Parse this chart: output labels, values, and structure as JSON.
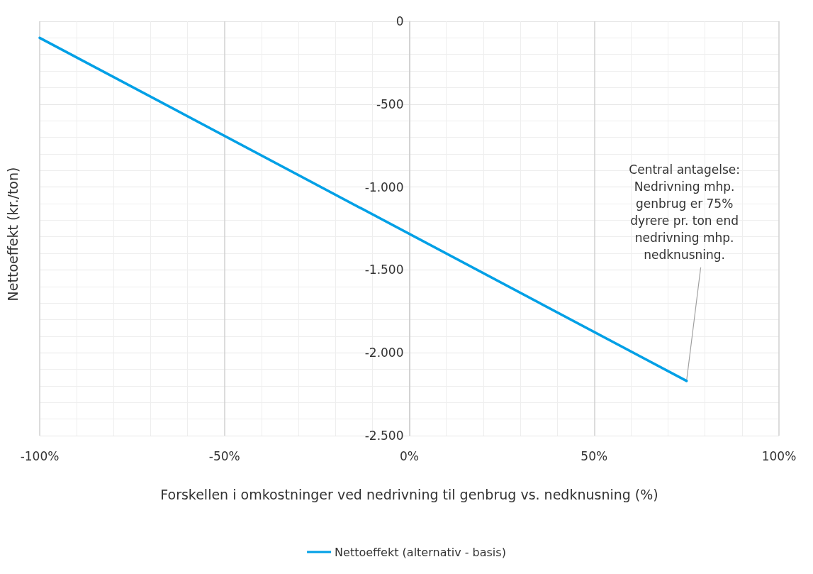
{
  "chart_data": {
    "type": "line",
    "xlabel": "Forskellen i omkostninger ved nedrivning til genbrug vs. nedknusning (%)",
    "ylabel": "Nettoeffekt (kr./ton)",
    "x": [
      -100,
      75
    ],
    "series": [
      {
        "name": "Nettoeffekt (alternativ - basis)",
        "color": "#00a0e6",
        "values": [
          -100,
          -2170
        ]
      }
    ],
    "xlim": [
      -100,
      100
    ],
    "xticks": [
      {
        "value": -100,
        "label": "-100%"
      },
      {
        "value": -50,
        "label": "-50%"
      },
      {
        "value": 0,
        "label": "0%"
      },
      {
        "value": 50,
        "label": "50%"
      },
      {
        "value": 100,
        "label": "100%"
      }
    ],
    "ylim": [
      -2500,
      0
    ],
    "yticks": [
      {
        "value": -2500,
        "label": "-2.500"
      },
      {
        "value": -2000,
        "label": "-2.000"
      },
      {
        "value": -1500,
        "label": "-1.500"
      },
      {
        "value": -1000,
        "label": "-1.000"
      },
      {
        "value": -500,
        "label": "-500"
      },
      {
        "value": 0,
        "label": "0"
      }
    ],
    "grid": true,
    "legend": "bottom",
    "marker": "none",
    "line_style": "solid",
    "annotations": [
      {
        "text": "Central antagelse:\nNedrivning mhp.\ngenbrug er 75%\ndyrere pr. ton end\nnedrivning mhp.\nnedknusning.",
        "x": 75,
        "y": -2170
      }
    ]
  }
}
